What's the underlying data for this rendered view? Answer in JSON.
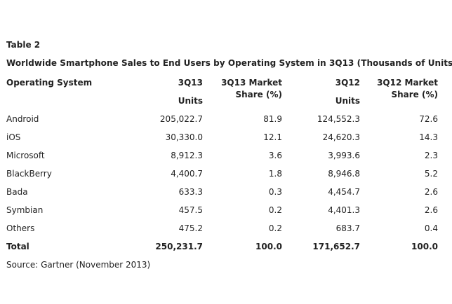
{
  "table_label": "Table 2",
  "title": "Worldwide Smartphone Sales to End Users by Operating System in 3Q13 (Thousands of Units)",
  "source": "Source: Gartner (November 2013)",
  "chart_data": {
    "type": "table",
    "title": "Worldwide Smartphone Sales to End Users by Operating System in 3Q13 (Thousands of Units)",
    "columns": [
      {
        "line1": "Operating System",
        "line2": ""
      },
      {
        "line1": "3Q13",
        "line2": "Units"
      },
      {
        "line1": "3Q13 Market",
        "line2": "Share (%)"
      },
      {
        "line1": "3Q12",
        "line2": "Units"
      },
      {
        "line1": "3Q12 Market",
        "line2": "Share (%)"
      }
    ],
    "rows": [
      [
        "Android",
        "205,022.7",
        "81.9",
        "124,552.3",
        "72.6"
      ],
      [
        "iOS",
        "30,330.0",
        "12.1",
        "24,620.3",
        "14.3"
      ],
      [
        "Microsoft",
        "8,912.3",
        "3.6",
        "3,993.6",
        "2.3"
      ],
      [
        "BlackBerry",
        "4,400.7",
        "1.8",
        "8,946.8",
        "5.2"
      ],
      [
        "Bada",
        "633.3",
        "0.3",
        "4,454.7",
        "2.6"
      ],
      [
        "Symbian",
        "457.5",
        "0.2",
        "4,401.3",
        "2.6"
      ],
      [
        "Others",
        "475.2",
        "0.2",
        "683.7",
        "0.4"
      ]
    ],
    "total": [
      "Total",
      "250,231.7",
      "100.0",
      "171,652.7",
      "100.0"
    ]
  }
}
